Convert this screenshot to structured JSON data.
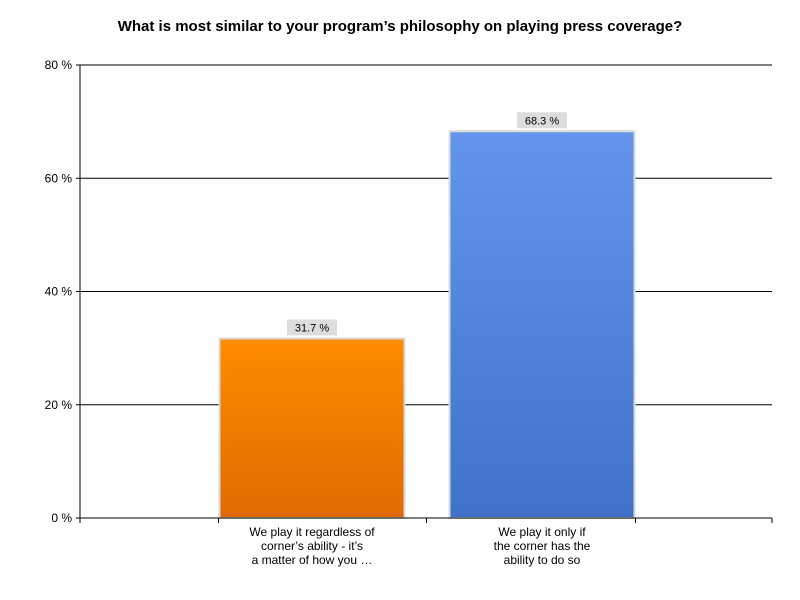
{
  "chart_data": {
    "type": "bar",
    "title": "What is most similar to your program’s philosophy on playing press coverage?",
    "categories": [
      "We play it regardless of corner’s ability - it’s a matter of how you …",
      "We play it only if the corner has the ability to do so"
    ],
    "category_lines": [
      [
        "We play it regardless of",
        "corner’s ability - it’s",
        "a matter of how you …"
      ],
      [
        "We play it only if",
        "the corner has the",
        "ability to do so"
      ]
    ],
    "values": [
      31.7,
      68.3
    ],
    "data_labels": [
      "31.7 %",
      "68.3 %"
    ],
    "yticks": [
      0,
      20,
      40,
      60,
      80
    ],
    "ytick_labels": [
      "0 %",
      "20 %",
      "40 %",
      "60 %",
      "80 %"
    ],
    "ylim": [
      0,
      80
    ],
    "xlabel": "",
    "ylabel": "",
    "grid": true,
    "colors": [
      {
        "top": "#ff8c00",
        "bottom": "#e06a00"
      },
      {
        "top": "#6495ed",
        "bottom": "#3f72c8"
      }
    ]
  }
}
